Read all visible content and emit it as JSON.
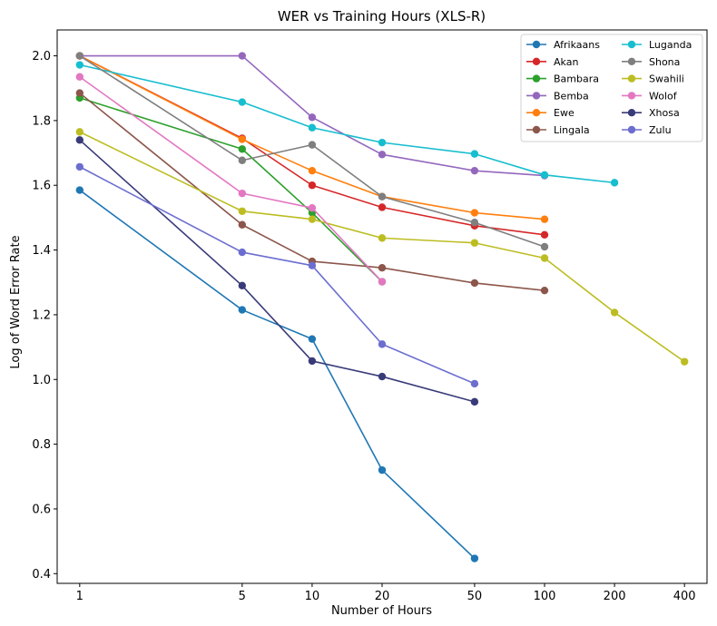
{
  "chart_data": {
    "type": "line",
    "title": "WER vs Training Hours (XLS-R)",
    "xlabel": "Number of Hours",
    "ylabel": "Log of Word Error Rate",
    "xscale": "log",
    "xlim": [
      0.8,
      500
    ],
    "ylim": [
      0.37,
      2.08
    ],
    "xticks": [
      1,
      5,
      10,
      20,
      50,
      100,
      200,
      400
    ],
    "xtick_labels": [
      "1",
      "5",
      "10",
      "20",
      "50",
      "100",
      "200",
      "400"
    ],
    "yticks": [
      0.4,
      0.6,
      0.8,
      1.0,
      1.2,
      1.4,
      1.6,
      1.8,
      2.0
    ],
    "ytick_labels": [
      "0.4",
      "0.6",
      "0.8",
      "1.0",
      "1.2",
      "1.4",
      "1.6",
      "1.8",
      "2.0"
    ],
    "grid": false,
    "legend_position": "top-right",
    "legend_columns": 2,
    "series": [
      {
        "name": "Afrikaans",
        "color": "#1f77b4",
        "x": [
          1,
          5,
          10,
          20,
          50
        ],
        "y": [
          1.585,
          1.215,
          1.125,
          0.72,
          0.447
        ]
      },
      {
        "name": "Akan",
        "color": "#d62728",
        "x": [
          1,
          5,
          10,
          20,
          50,
          100
        ],
        "y": [
          2.0,
          1.745,
          1.6,
          1.532,
          1.475,
          1.447
        ]
      },
      {
        "name": "Bambara",
        "color": "#2ca02c",
        "x": [
          1,
          5,
          10,
          20
        ],
        "y": [
          1.87,
          1.712,
          1.515,
          1.302
        ]
      },
      {
        "name": "Bemba",
        "color": "#9467bd",
        "x": [
          1,
          5,
          10,
          20,
          50,
          100
        ],
        "y": [
          2.0,
          2.0,
          1.81,
          1.695,
          1.645,
          1.63
        ]
      },
      {
        "name": "Ewe",
        "color": "#ff7f0e",
        "x": [
          1,
          5,
          10,
          20,
          50,
          100
        ],
        "y": [
          2.0,
          1.742,
          1.645,
          1.565,
          1.515,
          1.495
        ]
      },
      {
        "name": "Lingala",
        "color": "#8c564b",
        "x": [
          1,
          5,
          10,
          20,
          50,
          100
        ],
        "y": [
          1.885,
          1.478,
          1.365,
          1.345,
          1.298,
          1.275
        ]
      },
      {
        "name": "Luganda",
        "color": "#17becf",
        "x": [
          1,
          5,
          10,
          20,
          50,
          100,
          200
        ],
        "y": [
          1.972,
          1.857,
          1.778,
          1.732,
          1.697,
          1.632,
          1.608
        ]
      },
      {
        "name": "Shona",
        "color": "#7f7f7f",
        "x": [
          1,
          5,
          10,
          20,
          50,
          100
        ],
        "y": [
          2.0,
          1.677,
          1.725,
          1.565,
          1.485,
          1.41
        ]
      },
      {
        "name": "Swahili",
        "color": "#bcbd22",
        "x": [
          1,
          5,
          10,
          20,
          50,
          100,
          200,
          400
        ],
        "y": [
          1.765,
          1.52,
          1.495,
          1.437,
          1.422,
          1.375,
          1.207,
          1.055
        ]
      },
      {
        "name": "Wolof",
        "color": "#e377c2",
        "x": [
          1,
          5,
          10,
          20
        ],
        "y": [
          1.935,
          1.575,
          1.53,
          1.302
        ]
      },
      {
        "name": "Xhosa",
        "color": "#393b79",
        "x": [
          1,
          5,
          10,
          20,
          50
        ],
        "y": [
          1.74,
          1.29,
          1.057,
          1.009,
          0.931
        ]
      },
      {
        "name": "Zulu",
        "color": "#6b6ecf",
        "x": [
          1,
          5,
          10,
          20,
          50
        ],
        "y": [
          1.657,
          1.393,
          1.352,
          1.109,
          0.987
        ]
      }
    ]
  }
}
